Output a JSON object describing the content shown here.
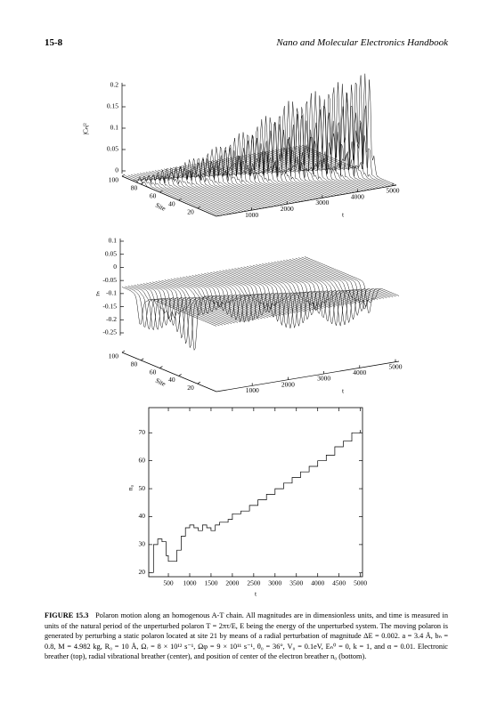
{
  "header": {
    "page": "15-8",
    "book": "Nano and Molecular Electronics Handbook"
  },
  "panels": [
    {
      "zlabel": "|Cₙ|²",
      "zlim": [
        0,
        0.2
      ],
      "zticks": [
        0,
        0.05,
        0.1,
        0.15,
        0.2
      ],
      "site_label": "Site",
      "site_ticks": [
        100,
        80,
        60,
        40,
        20
      ],
      "t_label": "t",
      "t_ticks": [
        1000,
        2000,
        3000,
        4000,
        5000
      ]
    },
    {
      "zlabel": "rₙ",
      "zlim": [
        -0.25,
        0.1
      ],
      "zticks": [
        0.1,
        0.05,
        0,
        -0.05,
        -0.1,
        -0.15,
        -0.2,
        -0.25
      ],
      "site_label": "Site",
      "site_ticks": [
        100,
        80,
        60,
        40,
        20
      ],
      "t_label": "t",
      "t_ticks": [
        1000,
        2000,
        3000,
        4000,
        5000
      ]
    },
    {
      "xlabel": "t",
      "ylabel": "n₀",
      "xlim": [
        40,
        5050
      ],
      "ylim": [
        18.5,
        79
      ],
      "xticks": [
        500,
        1000,
        1500,
        2000,
        2500,
        3000,
        3500,
        4000,
        4500,
        5000
      ],
      "yticks": [
        20,
        30,
        40,
        50,
        60,
        70
      ],
      "x": [
        50,
        150,
        250,
        350,
        450,
        500,
        600,
        700,
        800,
        900,
        1000,
        1100,
        1200,
        1300,
        1400,
        1500,
        1600,
        1700,
        1800,
        1900,
        2000,
        2200,
        2400,
        2600,
        2800,
        3000,
        3200,
        3400,
        3600,
        3800,
        4000,
        4200,
        4400,
        4600,
        4800,
        5000
      ],
      "y": [
        20,
        30,
        32,
        31,
        26,
        24,
        24,
        28,
        33,
        36,
        37,
        36,
        35,
        37,
        36,
        35,
        37,
        38,
        38,
        39,
        41,
        42,
        44,
        46,
        48,
        50,
        52,
        54,
        56,
        58,
        60,
        62,
        65,
        67,
        70,
        71
      ]
    }
  ],
  "caption": {
    "label": "FIGURE 15.3",
    "text": "Polaron motion along an homogenous A-T chain. All magnitudes are in dimensionless units, and time is measured in units of the natural period of the unperturbed polaron T = 2πτ/E, E being the energy of the unperturbed system. The moving polaron is generated by perturbing a static polaron located at site 21 by means of a radial perturbation of magnitude ΔE = 0.002. a = 3.4 Å, bₙ = 0.8, M = 4.982 kg, R₀ = 10 Å, Ωᵣ = 8 × 10¹² s⁻¹, Ωφ = 9 × 10¹¹ s⁻¹, θ₀ = 36°, V₀ = 0.1eV, Eₙ⁰ = 0, k = 1, and α = 0.01. Electronic breather (top), radial vibrational breather (center), and position of center of the electron breather n₀ (bottom)."
  }
}
